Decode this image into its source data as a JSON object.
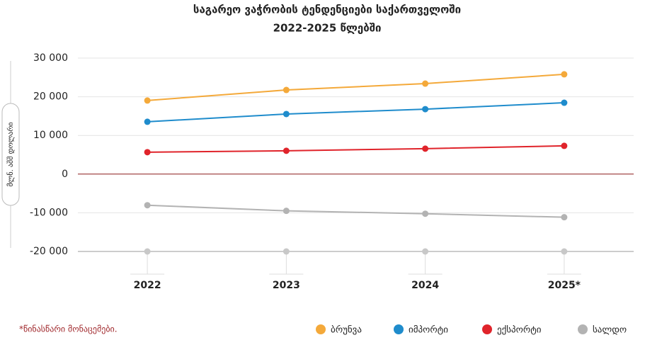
{
  "chart_data": {
    "type": "line",
    "title": "საგარეო ვაჭრობის ტენდენციები საქართველოში",
    "subtitle": "2022-2025 წლებში",
    "y_label": "მლნ. აშშ დოლარი",
    "note": "*წინასწარი მონაცემები.",
    "categories": [
      "2022",
      "2023",
      "2024",
      "2025*"
    ],
    "series": [
      {
        "name": "ბრუნვა",
        "color": "#f4a93a",
        "values": [
          19030,
          21750,
          23400,
          25800
        ]
      },
      {
        "name": "იმპორტი",
        "color": "#1f8ccc",
        "values": [
          13530,
          15540,
          16800,
          18460
        ]
      },
      {
        "name": "ექსპორტი",
        "color": "#e0242b",
        "values": [
          5670,
          6030,
          6580,
          7310
        ]
      },
      {
        "name": "სალდო",
        "color": "#b3b3b3",
        "values": [
          -8040,
          -9500,
          -10240,
          -11150
        ]
      }
    ],
    "ylim": [
      -20000,
      30000
    ],
    "yticks": [
      {
        "value": 30000,
        "label": "30 000"
      },
      {
        "value": 20000,
        "label": "20 000"
      },
      {
        "value": 10000,
        "label": "10 000"
      },
      0,
      {
        "value": -10000,
        "label": "-10 000"
      },
      {
        "value": -20000,
        "label": "-20 000"
      }
    ],
    "grid": true,
    "legend_position": "bottom-right"
  }
}
